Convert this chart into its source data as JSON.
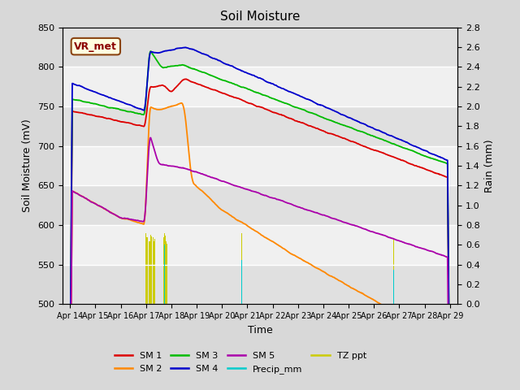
{
  "title": "Soil Moisture",
  "xlabel": "Time",
  "ylabel_left": "Soil Moisture (mV)",
  "ylabel_right": "Rain (mm)",
  "ylim_left": [
    500,
    850
  ],
  "ylim_right": [
    0.0,
    2.8
  ],
  "bg_color": "#e8e8e8",
  "plot_bg_color": "#e8e8e8",
  "annotation_text": "VR_met",
  "legend_entries": [
    "SM 1",
    "SM 2",
    "SM 3",
    "SM 4",
    "SM 5",
    "Precip_mm",
    "TZ ppt"
  ],
  "legend_colors": [
    "#dd0000",
    "#ff8800",
    "#00bb00",
    "#0000cc",
    "#aa00aa",
    "#00cccc",
    "#cccc00"
  ],
  "x_tick_labels": [
    "Apr 14",
    "Apr 15",
    "Apr 16",
    "Apr 17",
    "Apr 18",
    "Apr 19",
    "Apr 20",
    "Apr 21",
    "Apr 22",
    "Apr 23",
    "Apr 24",
    "Apr 25",
    "Apr 26",
    "Apr 27",
    "Apr 28",
    "Apr 29"
  ]
}
